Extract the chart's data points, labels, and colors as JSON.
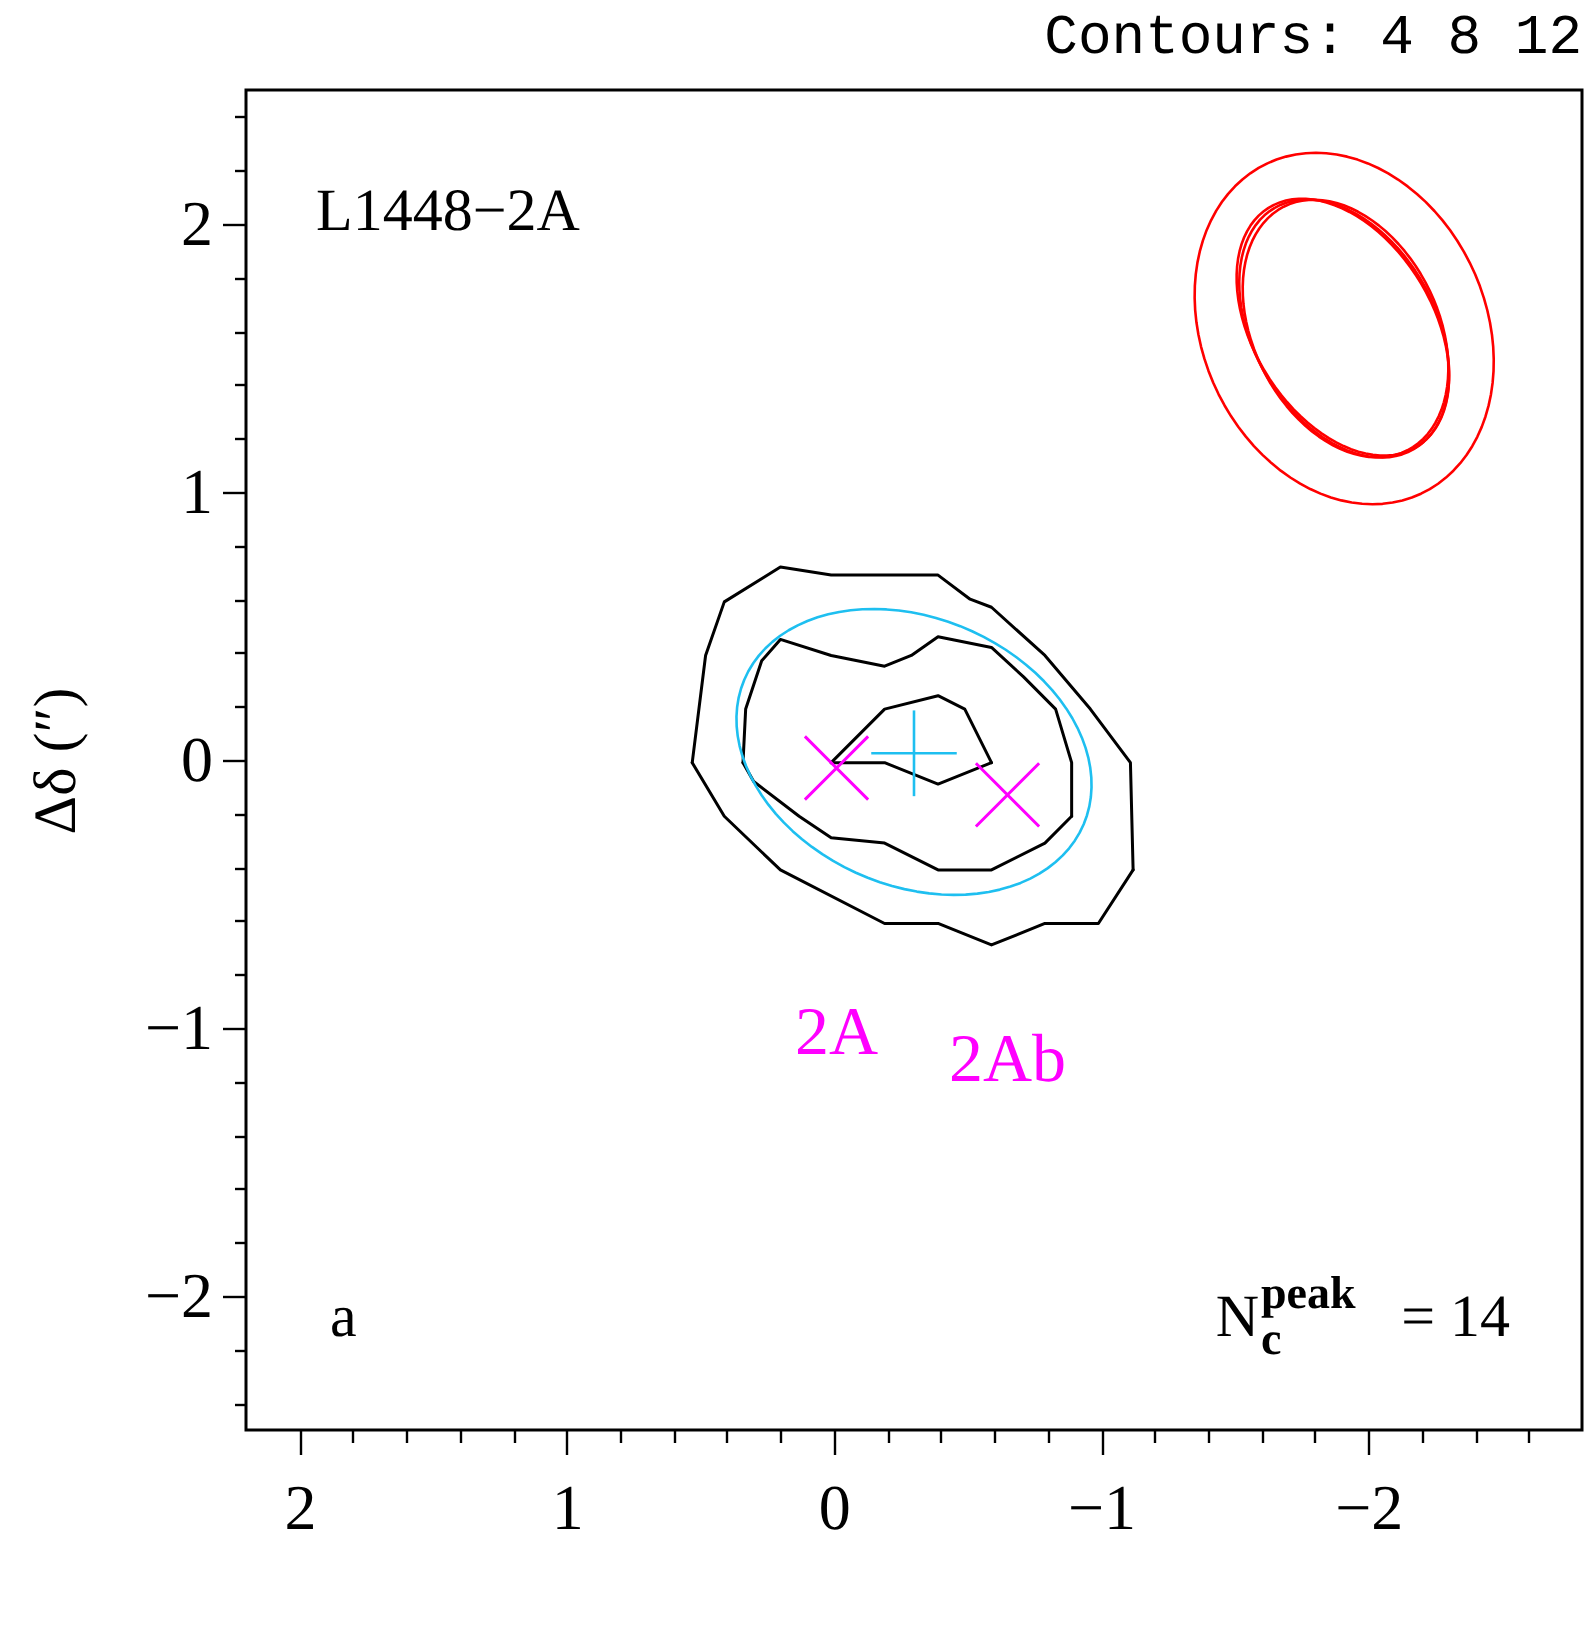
{
  "chart_data": {
    "type": "line",
    "title": "Contours: 4 8 12",
    "ylabel": "Δδ (″)",
    "xlim": [
      2.2,
      -2.8
    ],
    "ylim": [
      -2.5,
      2.5
    ],
    "xticks": [
      2,
      {
        "value": 1.8,
        "label": null
      },
      {
        "value": 1.6,
        "label": null
      },
      {
        "value": 1.4,
        "label": null
      },
      {
        "value": 1.2,
        "label": null
      },
      1,
      {
        "value": 0.8,
        "label": null
      },
      {
        "value": 0.6,
        "label": null
      },
      {
        "value": 0.4,
        "label": null
      },
      {
        "value": 0.2,
        "label": null
      },
      0,
      {
        "value": -0.2,
        "label": null
      },
      {
        "value": -0.4,
        "label": null
      },
      {
        "value": -0.6,
        "label": null
      },
      {
        "value": -0.8,
        "label": null
      },
      -1,
      {
        "value": -1.2,
        "label": null
      },
      {
        "value": -1.4,
        "label": null
      },
      {
        "value": -1.6,
        "label": null
      },
      {
        "value": -1.8,
        "label": null
      },
      -2,
      {
        "value": -2.2,
        "label": null
      },
      {
        "value": -2.4,
        "label": null
      },
      {
        "value": -2.6,
        "label": null
      }
    ],
    "yticks": [
      {
        "value": -2.4,
        "label": null
      },
      {
        "value": -2.2,
        "label": null
      },
      -2,
      {
        "value": -1.8,
        "label": null
      },
      {
        "value": -1.6,
        "label": null
      },
      {
        "value": -1.4,
        "label": null
      },
      {
        "value": -1.2,
        "label": null
      },
      -1,
      {
        "value": -0.8,
        "label": null
      },
      {
        "value": -0.6,
        "label": null
      },
      {
        "value": -0.4,
        "label": null
      },
      {
        "value": -0.2,
        "label": null
      },
      0,
      {
        "value": 0.2,
        "label": null
      },
      {
        "value": 0.4,
        "label": null
      },
      {
        "value": 0.6,
        "label": null
      },
      {
        "value": 0.8,
        "label": null
      },
      1,
      {
        "value": 1.2,
        "label": null
      },
      {
        "value": 1.4,
        "label": null
      },
      {
        "value": 1.6,
        "label": null
      },
      {
        "value": 1.8,
        "label": null
      },
      2,
      {
        "value": 2.2,
        "label": null
      },
      {
        "value": 2.4,
        "label": null
      }
    ],
    "series": [
      {
        "color": "#000000",
        "x": [
          0.53,
          0.48,
          0.41,
          0.2,
          0.01,
          -0.39,
          -0.51,
          -0.59,
          -0.79,
          -0.96,
          -1.11,
          -1.12
        ],
        "values": [
          -0.01,
          0.39,
          0.59,
          0.72,
          0.69,
          0.69,
          0.6,
          0.57,
          0.39,
          0.19,
          -0.01,
          -0.41
        ]
      },
      {
        "color": "#000000",
        "x": [
          0.53,
          0.41,
          0.2,
          -0.19,
          -0.39,
          -0.59,
          -0.79,
          -0.99,
          -1.12
        ],
        "values": [
          -0.01,
          -0.21,
          -0.41,
          -0.61,
          -0.61,
          -0.69,
          -0.61,
          -0.61,
          -0.41
        ]
      },
      {
        "color": "#000000",
        "x": [
          0.34,
          0.33,
          0.27,
          0.2,
          0.01,
          -0.19,
          -0.29,
          -0.39,
          -0.59,
          -0.71,
          -0.83,
          -0.89,
          -0.89
        ],
        "values": [
          -0.01,
          0.19,
          0.37,
          0.45,
          0.39,
          0.35,
          0.39,
          0.46,
          0.42,
          0.31,
          0.19,
          -0.01,
          -0.21
        ]
      },
      {
        "color": "#000000",
        "x": [
          0.34,
          0.3,
          0.13,
          0.01,
          -0.19,
          -0.39,
          -0.59,
          -0.79,
          -0.89
        ],
        "values": [
          -0.01,
          -0.08,
          -0.21,
          -0.29,
          -0.31,
          -0.41,
          -0.41,
          -0.31,
          -0.21
        ]
      },
      {
        "color": "#000000",
        "x": [
          0.01,
          -0.19,
          -0.39,
          -0.49,
          -0.59
        ],
        "values": [
          -0.01,
          0.19,
          0.24,
          0.19,
          -0.01
        ]
      },
      {
        "color": "#000000",
        "x": [
          0.01,
          -0.19,
          -0.39,
          -0.59
        ],
        "values": [
          -0.01,
          -0.01,
          -0.09,
          -0.01
        ]
      },
      {
        "type": "scatter",
        "name": "2A",
        "color": "#ff00ff",
        "marker": "cross",
        "x": [
          -0.01
        ],
        "values": [
          -0.03
        ]
      },
      {
        "type": "scatter",
        "name": "2Ab",
        "color": "#ff00ff",
        "marker": "cross",
        "x": [
          -0.65
        ],
        "values": [
          -0.13
        ]
      }
    ],
    "annotations": [
      "L1448−2A",
      "a",
      "N$_{c}$$^{peak}$ = 14"
    ]
  }
}
